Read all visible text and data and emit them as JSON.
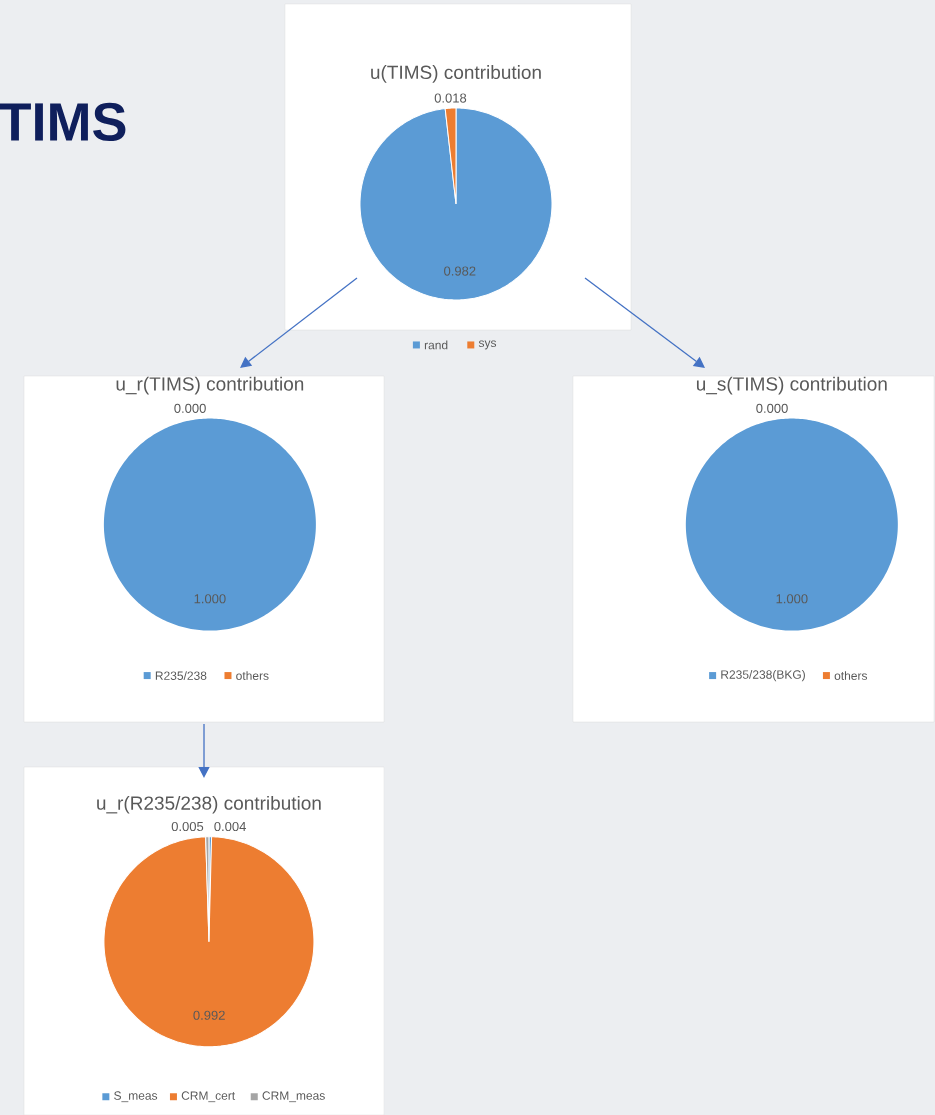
{
  "chart_data": [
    {
      "type": "pie",
      "title": "u(TIMS) contribution",
      "annotations": [
        "TIMS"
      ],
      "categories": [
        "rand",
        "sys"
      ],
      "values": [
        0.982,
        0.018
      ],
      "colors": [
        "#5b9bd5",
        "#ed7d31"
      ],
      "data_labels": true,
      "legend": "bottom"
    },
    {
      "type": "pie",
      "title": "u_r(TIMS) contribution",
      "categories": [
        "R235/238",
        "others"
      ],
      "values": [
        1.0,
        0.0
      ],
      "value_labels": [
        "1.000",
        "0.000"
      ],
      "colors": [
        "#5b9bd5",
        "#ed7d31"
      ],
      "legend": "bottom"
    },
    {
      "type": "pie",
      "title": "u_s(TIMS) contribution",
      "categories": [
        "R235/238(BKG)",
        "others"
      ],
      "values": [
        1.0,
        0.0
      ],
      "value_labels": [
        "1.000",
        "0.000"
      ],
      "colors": [
        "#5b9bd5",
        "#ed7d31"
      ],
      "legend": "bottom"
    },
    {
      "type": "pie",
      "title": "u_r(R235/238) contribution",
      "categories": [
        "S_meas",
        "CRM_cert",
        "CRM_meas"
      ],
      "values": [
        0.004,
        0.992,
        0.005
      ],
      "colors": [
        "#5b9bd5",
        "#ed7d31",
        "#a5a5a5"
      ],
      "data_labels": true,
      "legend": "bottom"
    }
  ]
}
